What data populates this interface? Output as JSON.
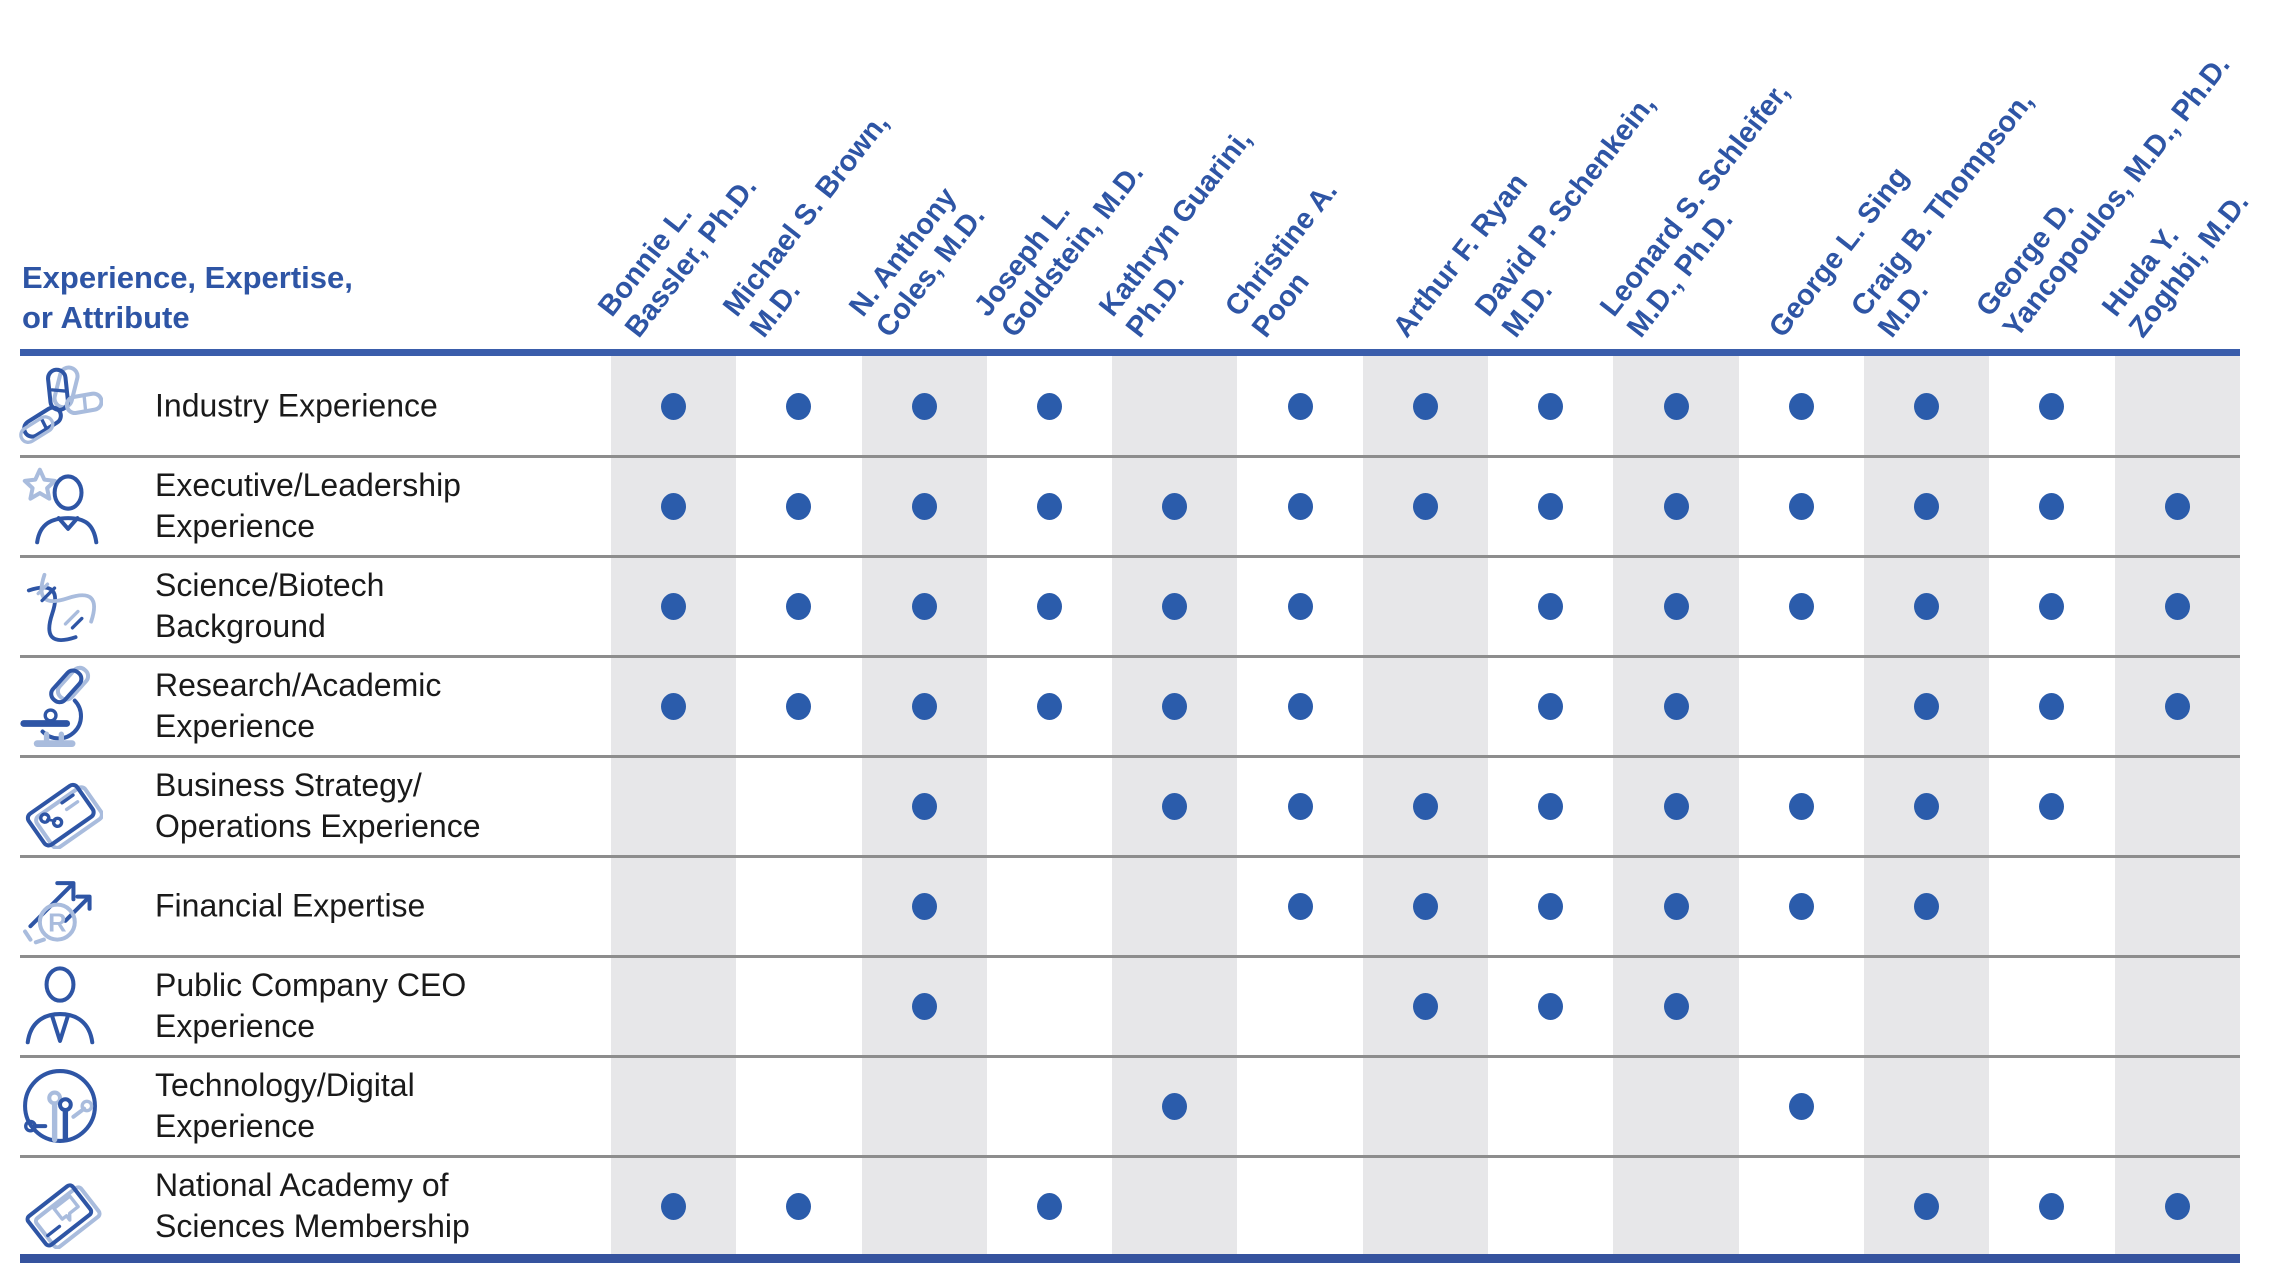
{
  "header": {
    "title": "Experience, Expertise,\nor Attribute"
  },
  "directors": [
    {
      "lines": [
        "Bonnie L.",
        "Bassler, Ph.D."
      ]
    },
    {
      "lines": [
        "Michael S. Brown,",
        "M.D."
      ]
    },
    {
      "lines": [
        "N. Anthony",
        "Coles, M.D."
      ]
    },
    {
      "lines": [
        "Joseph L.",
        "Goldstein, M.D."
      ]
    },
    {
      "lines": [
        "Kathryn Guarini,",
        "Ph.D."
      ]
    },
    {
      "lines": [
        "Christine A.",
        "Poon"
      ]
    },
    {
      "lines": [
        "Arthur F. Ryan"
      ]
    },
    {
      "lines": [
        "David P. Schenkein,",
        "M.D."
      ]
    },
    {
      "lines": [
        "Leonard S. Schleifer,",
        "M.D., Ph.D."
      ]
    },
    {
      "lines": [
        "George L. Sing"
      ]
    },
    {
      "lines": [
        "Craig B. Thompson,",
        "M.D."
      ]
    },
    {
      "lines": [
        "George D.",
        "Yancopoulos, M.D., Ph.D."
      ]
    },
    {
      "lines": [
        "Huda Y.",
        "Zoghbi, M.D."
      ]
    }
  ],
  "attributes": [
    {
      "label": "Industry Experience",
      "icon": "capsules-icon",
      "marks": [
        1,
        1,
        1,
        1,
        0,
        1,
        1,
        1,
        1,
        1,
        1,
        1,
        0
      ]
    },
    {
      "label": "Executive/Leadership\nExperience",
      "icon": "person-star-icon",
      "marks": [
        1,
        1,
        1,
        1,
        1,
        1,
        1,
        1,
        1,
        1,
        1,
        1,
        1
      ]
    },
    {
      "label": "Science/Biotech\nBackground",
      "icon": "dna-icon",
      "marks": [
        1,
        1,
        1,
        1,
        1,
        1,
        0,
        1,
        1,
        1,
        1,
        1,
        1
      ]
    },
    {
      "label": "Research/Academic\nExperience",
      "icon": "microscope-icon",
      "marks": [
        1,
        1,
        1,
        1,
        1,
        1,
        0,
        1,
        1,
        0,
        1,
        1,
        1
      ]
    },
    {
      "label": "Business Strategy/\nOperations Experience",
      "icon": "strategy-card-icon",
      "marks": [
        0,
        0,
        1,
        0,
        1,
        1,
        1,
        1,
        1,
        1,
        1,
        1,
        0
      ]
    },
    {
      "label": "Financial Expertise",
      "icon": "growth-arrows-icon",
      "marks": [
        0,
        0,
        1,
        0,
        0,
        1,
        1,
        1,
        1,
        1,
        1,
        0,
        0
      ]
    },
    {
      "label": "Public Company CEO\nExperience",
      "icon": "person-suit-icon",
      "marks": [
        0,
        0,
        1,
        0,
        0,
        0,
        1,
        1,
        1,
        0,
        0,
        0,
        0
      ]
    },
    {
      "label": "Technology/Digital\nExperience",
      "icon": "circuit-circle-icon",
      "marks": [
        0,
        0,
        0,
        0,
        1,
        0,
        0,
        0,
        0,
        1,
        0,
        0,
        0
      ]
    },
    {
      "label": "National Academy of\nSciences Membership",
      "icon": "book-icon",
      "marks": [
        1,
        1,
        0,
        1,
        0,
        0,
        0,
        0,
        0,
        0,
        1,
        1,
        1
      ]
    }
  ],
  "colors": {
    "accent_blue": "#2e55a5",
    "dot_blue": "#2b5cab",
    "stripe_gray": "#e7e7e9",
    "rule_blue": "#3a5dab",
    "separator_gray": "#8d8d8d",
    "label_black": "#1a1a1a",
    "icon_light_blue": "#a9bcdd"
  }
}
